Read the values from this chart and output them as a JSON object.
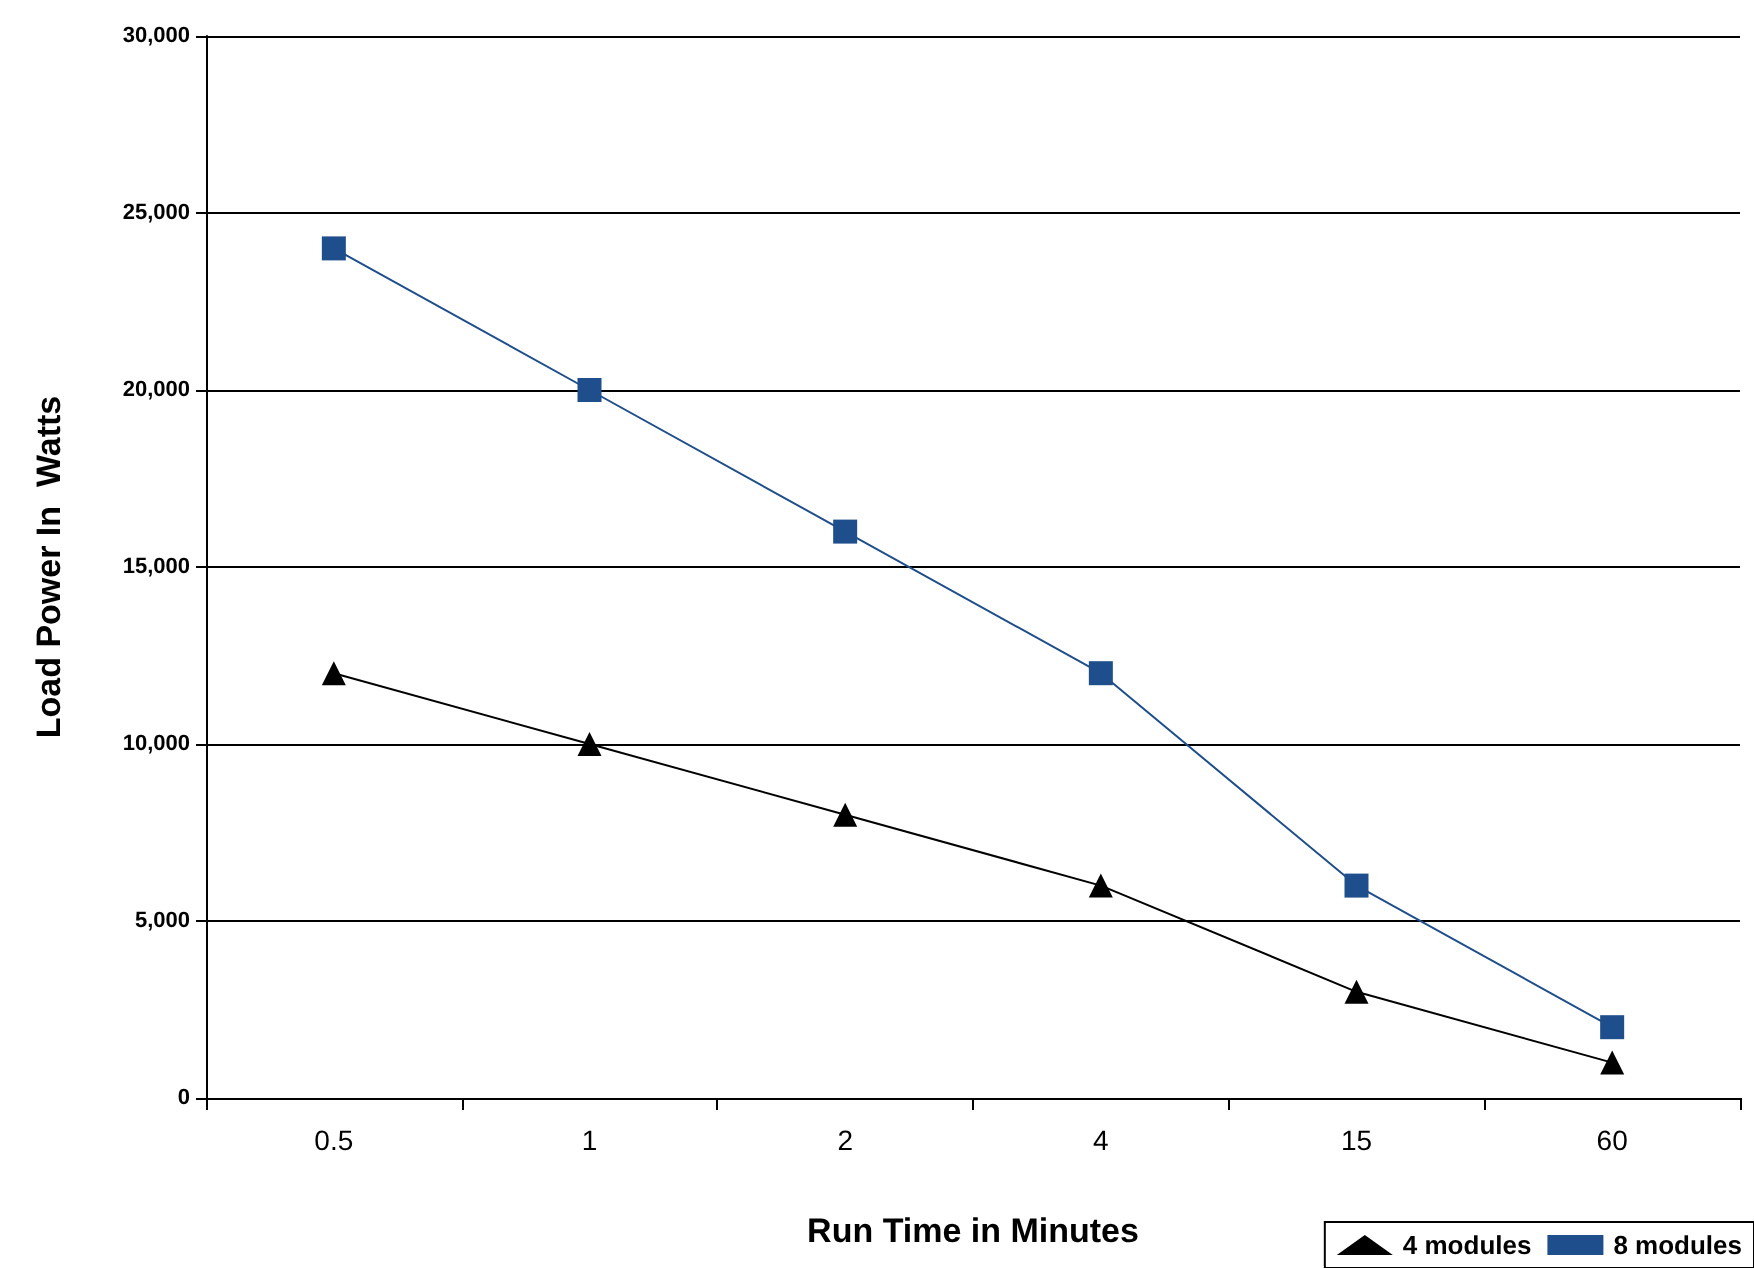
{
  "chart_data": {
    "type": "line",
    "xlabel": "Run Time in Minutes",
    "ylabel": "Load Power In  Watts",
    "categories": [
      "0.5",
      "1",
      "2",
      "4",
      "15",
      "60"
    ],
    "series": [
      {
        "name": "4 modules",
        "color": "#000000",
        "marker": "triangle",
        "values": [
          12000,
          10000,
          8000,
          6000,
          3000,
          1000
        ]
      },
      {
        "name": "8 modules",
        "color": "#1f4e8c",
        "marker": "square",
        "values": [
          24000,
          20000,
          16000,
          12000,
          6000,
          2000
        ]
      }
    ],
    "ylim": [
      0,
      30000
    ],
    "yticks": [
      {
        "value": 0,
        "label": "0"
      },
      {
        "value": 5000,
        "label": "5,000"
      },
      {
        "value": 10000,
        "label": "10,000"
      },
      {
        "value": 15000,
        "label": "15,000"
      },
      {
        "value": 20000,
        "label": "20,000"
      },
      {
        "value": 25000,
        "label": "25,000"
      },
      {
        "value": 30000,
        "label": "30,000"
      }
    ],
    "grid": "y",
    "legend": "bottom right"
  }
}
